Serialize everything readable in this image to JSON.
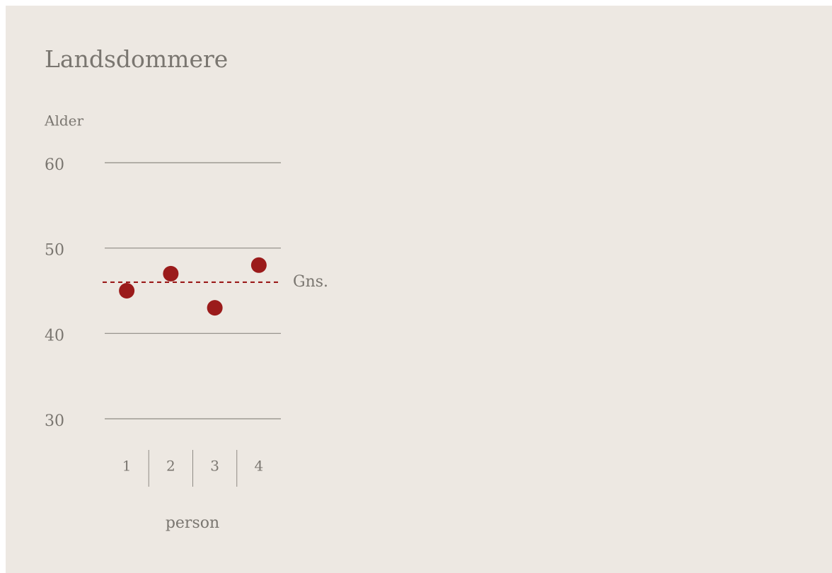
{
  "chart_data": {
    "type": "dot",
    "title": "Landsdommere",
    "y_label": "Alder",
    "x_label": "person",
    "categories": [
      "1",
      "2",
      "3",
      "4"
    ],
    "values": [
      45,
      47,
      43,
      48
    ],
    "color": "#9b1b1b",
    "ylim": [
      30,
      60
    ],
    "yticks": [
      30,
      40,
      50,
      60
    ],
    "grid": true,
    "reference_line": {
      "value": 46,
      "label": "Gns."
    }
  }
}
